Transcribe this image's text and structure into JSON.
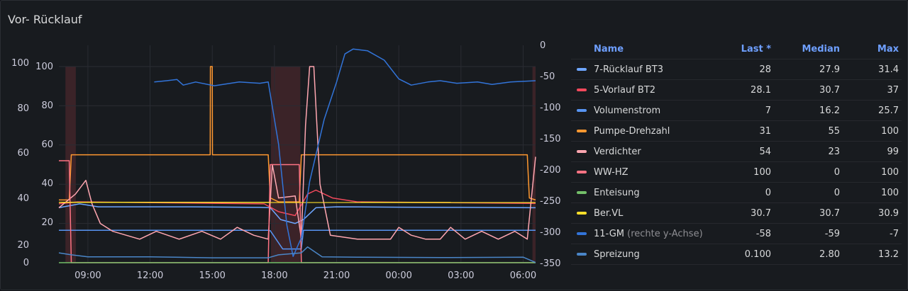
{
  "panel": {
    "title": "Vor- Rücklauf"
  },
  "chart_data": {
    "type": "line",
    "x_ticks": [
      "09:00",
      "12:00",
      "15:00",
      "18:00",
      "21:00",
      "00:00",
      "03:00",
      "06:00"
    ],
    "y_left_outer_ticks": [
      0,
      20,
      40,
      60,
      80,
      100
    ],
    "y_left_inner_ticks": [
      20,
      40,
      60,
      80,
      100
    ],
    "y_right_ticks": [
      0,
      -50,
      -100,
      -150,
      -200,
      -250,
      -300,
      -350
    ],
    "y_left_range": [
      0,
      100
    ],
    "y_right_range": [
      -350,
      0
    ],
    "grid": true,
    "legend_placement": "right",
    "shaded_regions": [
      [
        "07:55",
        "08:25"
      ],
      [
        "17:50",
        "19:15"
      ],
      [
        "07:50",
        "08:00"
      ]
    ],
    "series": [
      {
        "name": "7-Rücklauf BT3",
        "color": "#6ea6ff",
        "last": "28",
        "median": "27.9",
        "max": "31.4",
        "points": [
          [
            7.6,
            28
          ],
          [
            8.6,
            30
          ],
          [
            9.5,
            28.5
          ],
          [
            14.0,
            28.5
          ],
          [
            17.3,
            28.2
          ],
          [
            17.8,
            28
          ],
          [
            18.3,
            22
          ],
          [
            19.0,
            20
          ],
          [
            19.4,
            22
          ],
          [
            20.0,
            28
          ],
          [
            21.0,
            28.5
          ],
          [
            24.0,
            28.3
          ],
          [
            27.0,
            28.2
          ],
          [
            30.6,
            28
          ]
        ]
      },
      {
        "name": "5-Vorlauf BT2",
        "color": "#f2495c",
        "last": "28.1",
        "median": "30.7",
        "max": "37",
        "points": [
          [
            7.6,
            30
          ],
          [
            8.5,
            31
          ],
          [
            13.0,
            30.5
          ],
          [
            17.5,
            30
          ],
          [
            18.2,
            26
          ],
          [
            19.0,
            24
          ],
          [
            19.6,
            35
          ],
          [
            20.0,
            37
          ],
          [
            20.8,
            33
          ],
          [
            22.0,
            31
          ],
          [
            30.6,
            30.2
          ]
        ]
      },
      {
        "name": "Volumenstrom",
        "color": "#5794f2",
        "last": "7",
        "median": "16.2",
        "max": "25.7",
        "points": [
          [
            7.6,
            16.5
          ],
          [
            17.7,
            16.5
          ],
          [
            17.8,
            16.3
          ],
          [
            18.4,
            7
          ],
          [
            19.3,
            7
          ],
          [
            19.4,
            16.5
          ],
          [
            30.6,
            16.5
          ]
        ]
      },
      {
        "name": "Pumpe-Drehzahl",
        "color": "#ff9830",
        "last": "31",
        "median": "55",
        "max": "100",
        "points": [
          [
            7.6,
            32
          ],
          [
            8.1,
            32
          ],
          [
            8.2,
            55
          ],
          [
            14.9,
            55
          ],
          [
            14.91,
            100
          ],
          [
            15.0,
            100
          ],
          [
            15.01,
            55
          ],
          [
            17.7,
            55
          ],
          [
            17.8,
            33
          ],
          [
            18.2,
            31
          ],
          [
            19.2,
            31
          ],
          [
            19.3,
            55
          ],
          [
            30.2,
            55
          ],
          [
            30.3,
            33
          ],
          [
            30.6,
            32
          ]
        ]
      },
      {
        "name": "Verdichter",
        "color": "#ffa6b0",
        "last": "54",
        "median": "23",
        "max": "99",
        "points": [
          [
            7.6,
            28
          ],
          [
            8.4,
            35
          ],
          [
            8.9,
            42
          ],
          [
            9.2,
            30
          ],
          [
            9.6,
            20
          ],
          [
            10.2,
            16
          ],
          [
            11.5,
            12
          ],
          [
            12.3,
            16
          ],
          [
            13.4,
            12
          ],
          [
            14.5,
            16
          ],
          [
            15.4,
            12
          ],
          [
            16.2,
            18
          ],
          [
            17.0,
            14
          ],
          [
            17.7,
            12
          ],
          [
            17.9,
            50
          ],
          [
            18.2,
            33
          ],
          [
            19.0,
            34
          ],
          [
            19.3,
            12
          ],
          [
            19.5,
            70
          ],
          [
            19.7,
            100
          ],
          [
            19.9,
            100
          ],
          [
            20.2,
            40
          ],
          [
            20.7,
            14
          ],
          [
            22.0,
            12
          ],
          [
            23.6,
            12
          ],
          [
            24.0,
            18
          ],
          [
            24.6,
            14
          ],
          [
            25.3,
            12
          ],
          [
            26.0,
            12
          ],
          [
            26.5,
            18
          ],
          [
            27.2,
            12
          ],
          [
            28.0,
            16
          ],
          [
            28.8,
            12
          ],
          [
            29.6,
            16
          ],
          [
            30.2,
            12
          ],
          [
            30.6,
            54
          ]
        ]
      },
      {
        "name": "WW-HZ",
        "color": "#ff7383",
        "last": "100",
        "median": "0",
        "max": "100",
        "points": [
          [
            7.6,
            52
          ],
          [
            8.1,
            52
          ],
          [
            8.2,
            0
          ],
          [
            17.7,
            0
          ],
          [
            17.8,
            50
          ],
          [
            19.2,
            50
          ],
          [
            19.3,
            0
          ],
          [
            30.6,
            0
          ]
        ]
      },
      {
        "name": "Enteisung",
        "color": "#73bf69",
        "last": "0",
        "median": "0",
        "max": "100",
        "points": [
          [
            7.6,
            0
          ],
          [
            30.6,
            0
          ]
        ]
      },
      {
        "name": "Ber.VL",
        "color": "#fade2a",
        "last": "30.7",
        "median": "30.7",
        "max": "30.9",
        "points": [
          [
            7.6,
            30.8
          ],
          [
            30.6,
            30.7
          ]
        ]
      },
      {
        "name": "11-GM",
        "axis_note": "(rechte y-Achse)",
        "color": "#3274d9",
        "last": "-58",
        "median": "-59",
        "max": "-7",
        "points": [
          [
            12.2,
            -60
          ],
          [
            12.8,
            -58
          ],
          [
            13.3,
            -56
          ],
          [
            13.6,
            -65
          ],
          [
            14.2,
            -60
          ],
          [
            15.1,
            -66
          ],
          [
            16.3,
            -60
          ],
          [
            17.3,
            -62
          ],
          [
            17.7,
            -60
          ],
          [
            18.2,
            -160
          ],
          [
            18.6,
            -290
          ],
          [
            18.9,
            -340
          ],
          [
            19.3,
            -310
          ],
          [
            19.7,
            -220
          ],
          [
            20.4,
            -120
          ],
          [
            21.0,
            -60
          ],
          [
            21.4,
            -15
          ],
          [
            21.8,
            -7
          ],
          [
            22.5,
            -10
          ],
          [
            23.3,
            -25
          ],
          [
            24.0,
            -55
          ],
          [
            24.6,
            -65
          ],
          [
            25.4,
            -60
          ],
          [
            26.0,
            -58
          ],
          [
            26.8,
            -62
          ],
          [
            27.8,
            -60
          ],
          [
            28.5,
            -64
          ],
          [
            29.4,
            -60
          ],
          [
            30.6,
            -58
          ]
        ]
      },
      {
        "name": "Spreizung",
        "color": "#4a86c8",
        "last": "0.100",
        "median": "2.80",
        "max": "13.2",
        "points": [
          [
            7.6,
            5
          ],
          [
            8.2,
            4
          ],
          [
            9.0,
            3
          ],
          [
            12.0,
            3
          ],
          [
            15.0,
            2.5
          ],
          [
            17.7,
            2.5
          ],
          [
            18.2,
            4
          ],
          [
            19.3,
            5
          ],
          [
            19.6,
            8
          ],
          [
            20.3,
            3
          ],
          [
            22.0,
            2.8
          ],
          [
            26.0,
            2.6
          ],
          [
            30.0,
            2.8
          ],
          [
            30.6,
            0.1
          ]
        ]
      }
    ],
    "legend_headers": {
      "name": "Name",
      "last": "Last *",
      "median": "Median",
      "max": "Max"
    }
  }
}
